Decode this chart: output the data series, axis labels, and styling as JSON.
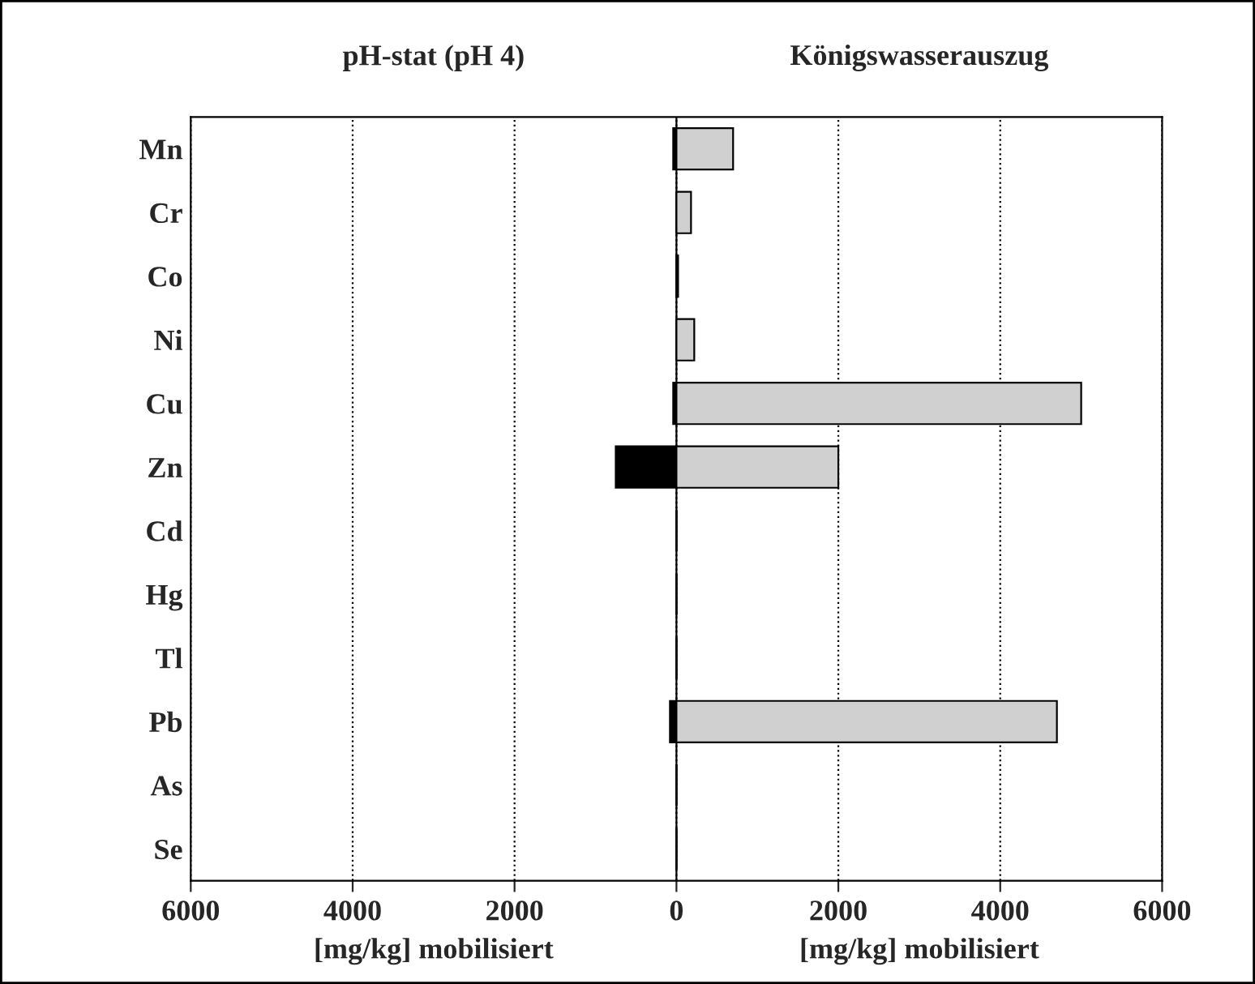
{
  "chart_data": {
    "type": "bar",
    "orientation": "horizontal",
    "title": "pH-stat (pH 4)",
    "xlabel": "[mg/kg] mobilisiert",
    "categories": [
      "Mn",
      "Cr",
      "Co",
      "Ni",
      "Cu",
      "Zn",
      "Cd",
      "Hg",
      "Tl",
      "Pb",
      "As",
      "Se"
    ],
    "series": [
      {
        "color": "#000000",
        "values": [
          -40,
          0,
          0,
          0,
          -40,
          -750,
          0,
          0,
          0,
          -80,
          0,
          0
        ]
      },
      {
        "color": "#d0d0d0",
        "values": [
          700,
          180,
          20,
          220,
          5000,
          2000,
          0,
          0,
          0,
          4700,
          0,
          0
        ]
      }
    ],
    "annotations": [
      "Königswasserauszug",
      "[mg/kg] mobilisiert"
    ],
    "xlim": [
      -6000,
      6000
    ],
    "xticks": [
      {
        "value": -6000,
        "label": "6000"
      },
      {
        "value": -4000,
        "label": "4000"
      },
      {
        "value": -2000,
        "label": "2000"
      },
      0,
      2000,
      4000,
      6000
    ],
    "grid": "x"
  }
}
